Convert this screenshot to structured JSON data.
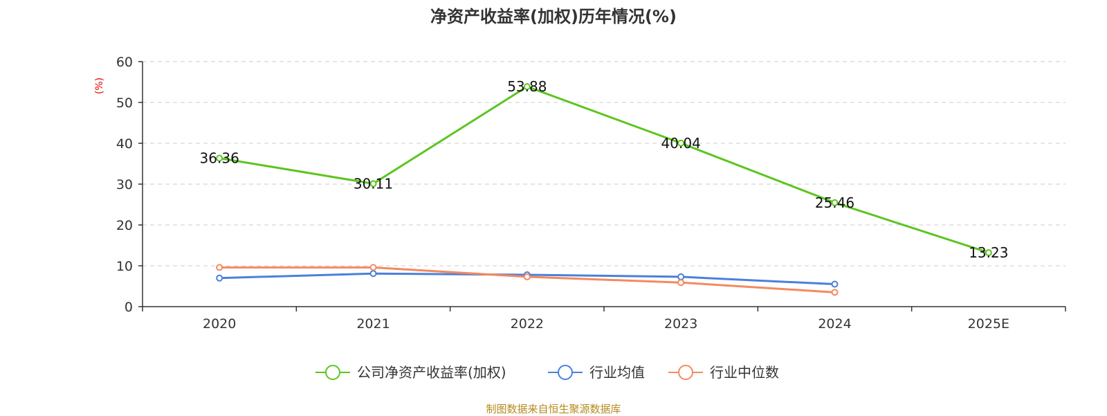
{
  "chart_data": {
    "type": "line",
    "title": "净资产收益率(加权)历年情况(%)",
    "ylabel": "(%)",
    "xlabel": "",
    "categories": [
      "2020",
      "2021",
      "2022",
      "2023",
      "2024",
      "2025E"
    ],
    "ylim": [
      0,
      60
    ],
    "yticks": [
      0,
      10,
      20,
      30,
      40,
      50,
      60
    ],
    "grid": true,
    "legend_position": "bottom-center",
    "series": [
      {
        "name": "公司净资产收益率(加权)",
        "color": "#5bc51f",
        "values": [
          36.36,
          30.11,
          53.88,
          40.04,
          25.46,
          13.23
        ],
        "labels": [
          "36.36",
          "30.11",
          "53.88",
          "40.04",
          "25.46",
          "13.23"
        ]
      },
      {
        "name": "行业均值",
        "color": "#4a7fdd",
        "values": [
          7.0,
          8.1,
          7.8,
          7.3,
          5.5,
          null
        ]
      },
      {
        "name": "行业中位数",
        "color": "#f4895f",
        "values": [
          9.6,
          9.6,
          7.3,
          5.9,
          3.5,
          null
        ]
      }
    ]
  },
  "footer": {
    "source": "制图数据来自恒生聚源数据库"
  },
  "colors": {
    "grid": "#cccccc",
    "axis": "#333333",
    "unit": "#e00000",
    "source": "#b58a1e"
  }
}
